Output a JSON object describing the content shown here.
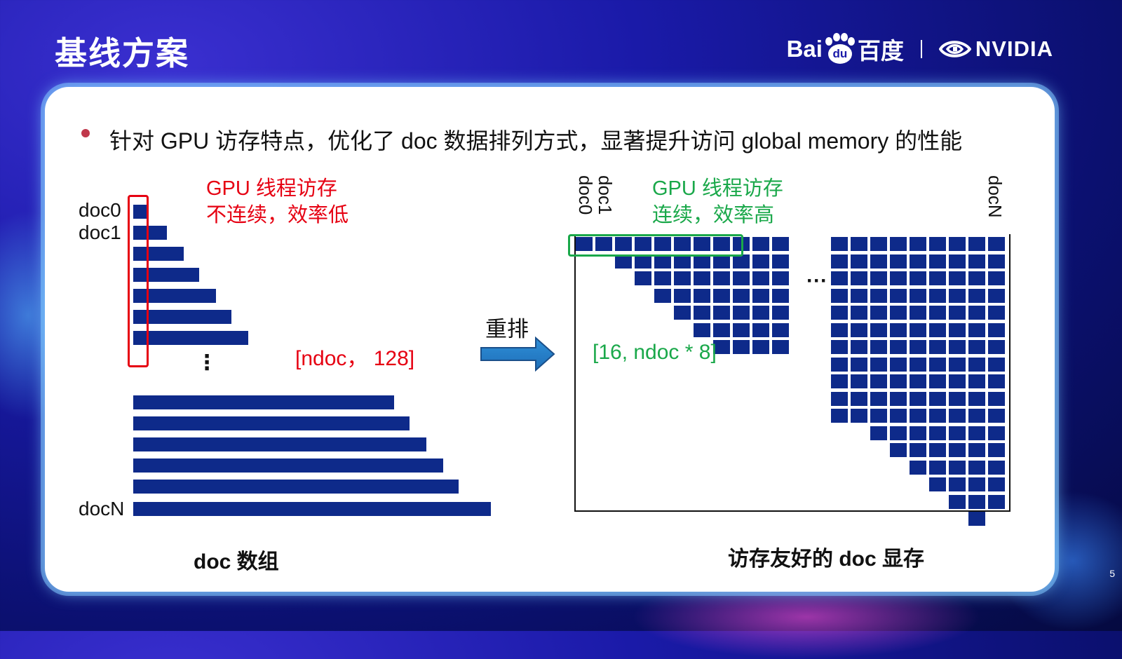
{
  "header": {
    "title": "基线方案",
    "baidu_left": "Bai",
    "baidu_paw_text": "du",
    "baidu_right": "百度",
    "nvidia": "NVIDIA"
  },
  "bullet": "针对 GPU 访存特点，优化了 doc 数据排列方式，显著提升访问 global memory 的性能",
  "left_diagram": {
    "labels": {
      "doc0": "doc0",
      "doc1": "doc1",
      "docN": "docN"
    },
    "note_line1": "GPU 线程访存",
    "note_line2": "不连续，效率低",
    "vdots": "⋮",
    "shape": "[ndoc， 128]",
    "caption": "doc 数组"
  },
  "transform": {
    "label": "重排"
  },
  "right_diagram": {
    "col_labels": {
      "doc0": "doc0",
      "doc1": "doc1",
      "docN": "docN"
    },
    "note_line1": "GPU 线程访存",
    "note_line2": "连续，效率高",
    "hdots": "···",
    "shape": "[16, ndoc * 8]",
    "caption": "访存友好的 doc 显存"
  },
  "page_number": "5",
  "colors": {
    "bar": "#0e2a8a",
    "red": "#e60012",
    "green": "#1aa84a",
    "bullet_dot": "#c0384b"
  },
  "icons": [
    "baidu-logo-icon",
    "nvidia-logo-icon",
    "right-arrow-icon"
  ]
}
